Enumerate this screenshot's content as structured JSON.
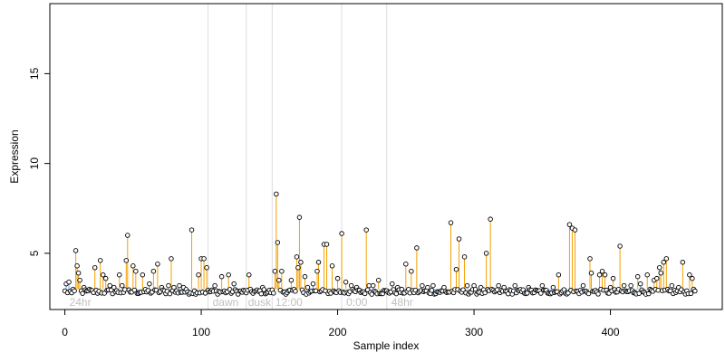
{
  "chart_data": {
    "type": "scatter",
    "xlabel": "Sample index",
    "ylabel": "Expression",
    "xlim": [
      -11,
      482
    ],
    "ylim": [
      1.87,
      18.9
    ],
    "xticks": [
      0,
      100,
      200,
      300,
      400
    ],
    "yticks": [
      5,
      10,
      15
    ],
    "baseline_level": 3.0,
    "grid": false,
    "legend": "none",
    "colors": {
      "point_stroke": "#000000",
      "high_stem": "#f5a000",
      "low_stem": "#6fa8e8",
      "separator": "#dddddd",
      "annotation": "#c0c0c0"
    },
    "separators_x": [
      105,
      133,
      152,
      203,
      236
    ],
    "annotations": [
      {
        "text": "24hr",
        "x": 2
      },
      {
        "text": "dawn",
        "x": 107
      },
      {
        "text": "dusk",
        "x": 133
      },
      {
        "text": "12:00",
        "x": 153
      },
      {
        "text": "0:00",
        "x": 205
      },
      {
        "text": "48hr",
        "x": 238
      }
    ],
    "high_points": [
      [
        8,
        5.15
      ],
      [
        9,
        4.3
      ],
      [
        10,
        3.9
      ],
      [
        11,
        3.5
      ],
      [
        22,
        4.2
      ],
      [
        26,
        4.6
      ],
      [
        28,
        3.8
      ],
      [
        30,
        3.6
      ],
      [
        40,
        3.8
      ],
      [
        45,
        4.6
      ],
      [
        46,
        6.0
      ],
      [
        50,
        4.3
      ],
      [
        52,
        4.0
      ],
      [
        57,
        3.8
      ],
      [
        65,
        4.0
      ],
      [
        68,
        4.4
      ],
      [
        78,
        4.7
      ],
      [
        93,
        6.3
      ],
      [
        98,
        3.8
      ],
      [
        100,
        4.7
      ],
      [
        102,
        4.7
      ],
      [
        104,
        4.2
      ],
      [
        115,
        3.7
      ],
      [
        120,
        3.8
      ],
      [
        135,
        3.8
      ],
      [
        154,
        4.0
      ],
      [
        155,
        8.3
      ],
      [
        156,
        5.6
      ],
      [
        157,
        3.5
      ],
      [
        159,
        4.0
      ],
      [
        166,
        3.5
      ],
      [
        170,
        4.8
      ],
      [
        171,
        4.2
      ],
      [
        172,
        7.0
      ],
      [
        173,
        4.5
      ],
      [
        176,
        3.7
      ],
      [
        185,
        4.0
      ],
      [
        186,
        4.5
      ],
      [
        190,
        5.5
      ],
      [
        192,
        5.5
      ],
      [
        196,
        4.3
      ],
      [
        200,
        3.6
      ],
      [
        203,
        6.1
      ],
      [
        206,
        3.4
      ],
      [
        221,
        6.3
      ],
      [
        230,
        3.5
      ],
      [
        250,
        4.4
      ],
      [
        254,
        4.0
      ],
      [
        258,
        5.3
      ],
      [
        283,
        6.7
      ],
      [
        287,
        4.1
      ],
      [
        289,
        5.8
      ],
      [
        293,
        4.8
      ],
      [
        295,
        3.2
      ],
      [
        309,
        5.0
      ],
      [
        312,
        6.9
      ],
      [
        362,
        3.8
      ],
      [
        370,
        6.6
      ],
      [
        372,
        6.4
      ],
      [
        374,
        6.3
      ],
      [
        385,
        4.7
      ],
      [
        386,
        3.9
      ],
      [
        392,
        3.8
      ],
      [
        394,
        4.0
      ],
      [
        396,
        3.8
      ],
      [
        402,
        3.6
      ],
      [
        407,
        5.4
      ],
      [
        415,
        3.2
      ],
      [
        420,
        3.7
      ],
      [
        427,
        3.8
      ],
      [
        432,
        3.5
      ],
      [
        434,
        3.6
      ],
      [
        436,
        4.2
      ],
      [
        437,
        3.9
      ],
      [
        439,
        4.5
      ],
      [
        441,
        4.7
      ],
      [
        453,
        4.5
      ],
      [
        458,
        3.8
      ],
      [
        460,
        3.6
      ]
    ],
    "low_points": [
      [
        1,
        3.3
      ],
      [
        3,
        3.4
      ],
      [
        5,
        2.8
      ],
      [
        14,
        3.1
      ],
      [
        16,
        2.9
      ],
      [
        18,
        3.0
      ],
      [
        33,
        3.2
      ],
      [
        36,
        3.1
      ],
      [
        42,
        3.2
      ],
      [
        62,
        3.3
      ],
      [
        71,
        3.1
      ],
      [
        76,
        3.2
      ],
      [
        80,
        3.1
      ],
      [
        84,
        3.2
      ],
      [
        87,
        3.1
      ],
      [
        110,
        3.2
      ],
      [
        124,
        3.3
      ],
      [
        145,
        3.1
      ],
      [
        178,
        3.1
      ],
      [
        182,
        3.3
      ],
      [
        210,
        3.2
      ],
      [
        214,
        3.1
      ],
      [
        223,
        3.2
      ],
      [
        226,
        3.2
      ],
      [
        240,
        3.3
      ],
      [
        244,
        3.1
      ],
      [
        262,
        3.2
      ],
      [
        266,
        3.1
      ],
      [
        270,
        3.2
      ],
      [
        278,
        3.1
      ],
      [
        300,
        3.2
      ],
      [
        305,
        3.1
      ],
      [
        318,
        3.2
      ],
      [
        322,
        3.1
      ],
      [
        330,
        3.2
      ],
      [
        340,
        3.1
      ],
      [
        350,
        3.2
      ],
      [
        358,
        3.1
      ],
      [
        380,
        3.2
      ],
      [
        400,
        3.1
      ],
      [
        410,
        3.2
      ],
      [
        422,
        3.3
      ],
      [
        445,
        3.2
      ],
      [
        450,
        3.1
      ],
      [
        462,
        2.9
      ]
    ]
  }
}
